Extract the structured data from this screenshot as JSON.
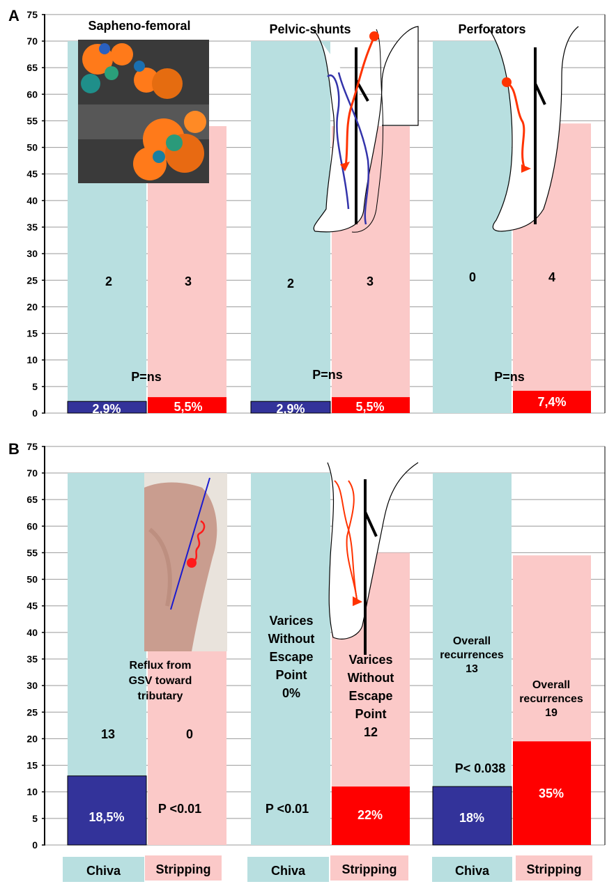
{
  "panels": [
    {
      "panel_label": "A",
      "groups": [
        {
          "title": "Sapheno-femoral",
          "chiva": {
            "shaded_value": 70,
            "value": 2.2,
            "percent_label": "2,9%",
            "count_label": "2"
          },
          "stripping": {
            "shaded_value": 54,
            "value": 3.0,
            "percent_label": "5,5%",
            "count_label": "3"
          },
          "p_label": "P=ns",
          "inset": "doppler-ultrasound"
        },
        {
          "title": "Pelvic-shunts",
          "chiva": {
            "shaded_value": 70,
            "value": 2.2,
            "percent_label": "2,9%",
            "count_label": "2"
          },
          "stripping": {
            "shaded_value": 54,
            "value": 3.0,
            "percent_label": "5,5%",
            "count_label": "3"
          },
          "p_label": "P=ns",
          "inset": "leg-pelvic-diagram"
        },
        {
          "title": "Perforators",
          "chiva": {
            "shaded_value": 70,
            "value": 0,
            "percent_label": "",
            "count_label": "0"
          },
          "stripping": {
            "shaded_value": 54.5,
            "value": 4.2,
            "percent_label": "7,4%",
            "count_label": "4"
          },
          "p_label": "P=ns",
          "inset": "leg-perforator-diagram"
        }
      ]
    },
    {
      "panel_label": "B",
      "groups": [
        {
          "title": "",
          "chiva": {
            "shaded_value": 70,
            "value": 13,
            "percent_label": "18,5%",
            "count_label": "13",
            "text_lines": []
          },
          "stripping": {
            "shaded_value": 36.5,
            "value": 0,
            "percent_label": "",
            "count_label": "0",
            "text_lines": []
          },
          "middle_text_lines": [
            "Reflux  from",
            "GSV toward",
            "tributary"
          ],
          "p_label": "P <0.01",
          "inset": "leg-photo"
        },
        {
          "title": "",
          "chiva": {
            "shaded_value": 70,
            "value": 0,
            "percent_label": "",
            "count_label": "",
            "text_lines": [
              "Varices",
              "Without",
              "Escape",
              "Point",
              "0%"
            ]
          },
          "stripping": {
            "shaded_value": 55,
            "value": 11,
            "percent_label": "22%",
            "count_label": "",
            "text_lines": [
              "Varices",
              "Without",
              "Escape",
              "Point",
              "12"
            ]
          },
          "middle_text_lines": [],
          "p_label": "P <0.01",
          "inset": "leg-varices-diagram"
        },
        {
          "title": "",
          "chiva": {
            "shaded_value": 70,
            "value": 11,
            "percent_label": "18%",
            "count_label": "",
            "text_lines": [
              "Overall",
              "recurrences",
              "13"
            ]
          },
          "stripping": {
            "shaded_value": 54.5,
            "value": 19.5,
            "percent_label": "35%",
            "count_label": "",
            "text_lines": [
              "Overall",
              "recurrences",
              "19"
            ]
          },
          "middle_text_lines": [],
          "p_label": "P< 0.038",
          "inset": ""
        }
      ]
    }
  ],
  "y_ticks": [
    "0",
    "5",
    "10",
    "15",
    "20",
    "25",
    "30",
    "35",
    "40",
    "45",
    "50",
    "55",
    "60",
    "65",
    "70",
    "75"
  ],
  "legend": [
    {
      "chiva": "Chiva",
      "stripping": "Stripping"
    },
    {
      "chiva": "Chiva",
      "stripping": "Stripping"
    },
    {
      "chiva": "Chiva",
      "stripping": "Stripping"
    }
  ],
  "colors": {
    "chiva_shade": "#b8dfe0",
    "stripping_shade": "#fbc9c8",
    "chiva_bar": "#33339a",
    "stripping_bar": "#ff0000",
    "grid": "#999999",
    "vein_red": "#ff3300",
    "vein_blue": "#3333aa"
  },
  "chart_data": [
    {
      "type": "bar",
      "panel": "A",
      "categories": [
        "Sapheno-femoral",
        "Pelvic-shunts",
        "Perforators"
      ],
      "series": [
        {
          "name": "Chiva",
          "values": [
            2.2,
            2.2,
            0
          ],
          "labels": [
            "2,9%",
            "2,9%",
            ""
          ],
          "counts": [
            2,
            2,
            0
          ]
        },
        {
          "name": "Stripping",
          "values": [
            3.0,
            3.0,
            4.2
          ],
          "labels": [
            "5,5%",
            "5,5%",
            "7,4%"
          ],
          "counts": [
            3,
            3,
            4
          ]
        }
      ],
      "annotations": [
        "P=ns",
        "P=ns",
        "P=ns"
      ],
      "ylim": [
        0,
        75
      ],
      "grid": true
    },
    {
      "type": "bar",
      "panel": "B",
      "categories": [
        "Reflux from GSV toward tributary",
        "Varices Without Escape Point",
        "Overall recurrences"
      ],
      "series": [
        {
          "name": "Chiva",
          "values": [
            13,
            0,
            11
          ],
          "labels": [
            "18,5%",
            "0%",
            "18%"
          ],
          "counts": [
            13,
            0,
            13
          ]
        },
        {
          "name": "Stripping",
          "values": [
            0,
            11,
            19.5
          ],
          "labels": [
            "",
            "22%",
            "35%"
          ],
          "counts": [
            0,
            12,
            19
          ]
        }
      ],
      "annotations": [
        "P <0.01",
        "P <0.01",
        "P< 0.038"
      ],
      "ylim": [
        0,
        75
      ],
      "grid": true
    }
  ]
}
